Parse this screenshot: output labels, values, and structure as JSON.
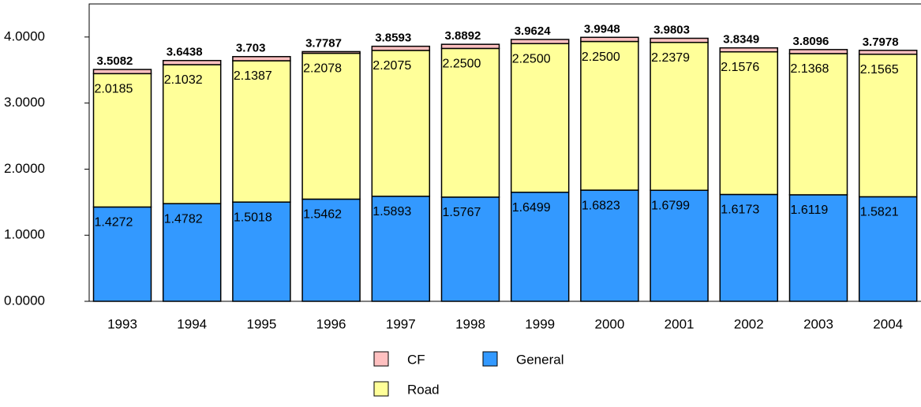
{
  "chart_data": {
    "type": "stacked-bar",
    "categories": [
      "1993",
      "1994",
      "1995",
      "1996",
      "1997",
      "1998",
      "1999",
      "2000",
      "2001",
      "2002",
      "2003",
      "2004"
    ],
    "series": [
      {
        "name": "General",
        "color": "#3399ff",
        "values": [
          1.4272,
          1.4782,
          1.5018,
          1.5462,
          1.5893,
          1.5767,
          1.6499,
          1.6823,
          1.6799,
          1.6173,
          1.6119,
          1.5821
        ],
        "value_labels": [
          "1.4272",
          "1.4782",
          "1.5018",
          "1.5462",
          "1.5893",
          "1.5767",
          "1.6499",
          "1.6823",
          "1.6799",
          "1.6173",
          "1.6119",
          "1.5821"
        ]
      },
      {
        "name": "Road",
        "color": "#ffff99",
        "values": [
          2.0185,
          2.1032,
          2.1387,
          2.2078,
          2.2075,
          2.25,
          2.25,
          2.25,
          2.2379,
          2.1576,
          2.1368,
          2.1565
        ],
        "value_labels": [
          "2.0185",
          "2.1032",
          "2.1387",
          "2.2078",
          "2.2075",
          "2.2500",
          "2.2500",
          "2.2500",
          "2.2379",
          "2.1576",
          "2.1368",
          "2.1565"
        ]
      },
      {
        "name": "CF",
        "color": "#ffc0c0",
        "values": [
          0.0625,
          0.0624,
          0.0625,
          0.0247,
          0.0625,
          0.0625,
          0.0625,
          0.0625,
          0.0625,
          0.06,
          0.0609,
          0.0592
        ]
      }
    ],
    "totals": [
      3.5082,
      3.6438,
      3.703,
      3.7787,
      3.8593,
      3.8892,
      3.9624,
      3.9948,
      3.9803,
      3.8349,
      3.8096,
      3.7978
    ],
    "ylim": [
      0,
      4.5
    ],
    "yticks": [
      {
        "value": 0,
        "label": "0.0000"
      },
      {
        "value": 1,
        "label": "1.0000"
      },
      {
        "value": 2,
        "label": "2.0000"
      },
      {
        "value": 3,
        "label": "3.0000"
      },
      {
        "value": 4,
        "label": "4.0000"
      }
    ]
  }
}
